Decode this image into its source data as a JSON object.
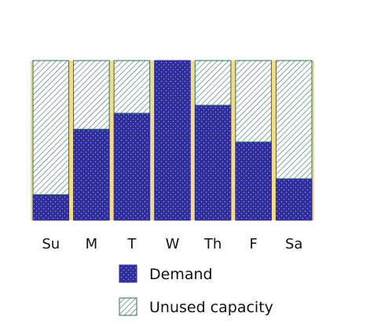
{
  "chart_data": {
    "type": "bar",
    "stacked": true,
    "categories": [
      "Su",
      "M",
      "T",
      "W",
      "Th",
      "F",
      "Sa"
    ],
    "ylim": [
      0,
      100
    ],
    "series": [
      {
        "name": "Demand",
        "values": [
          16,
          57,
          67,
          100,
          72,
          49,
          26
        ],
        "color": "#2e2e9e",
        "pattern": "dots"
      },
      {
        "name": "Unused capacity",
        "values": [
          84,
          43,
          33,
          0,
          28,
          51,
          74
        ],
        "color": "#2f6f63",
        "pattern": "hatch"
      }
    ],
    "separator_color": "#f2dc8a",
    "legend_position": "bottom-center"
  }
}
